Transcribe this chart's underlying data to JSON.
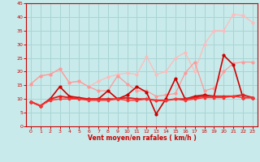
{
  "background_color": "#c8eaea",
  "grid_color": "#aad4d4",
  "xlabel": "Vent moyen/en rafales ( km/h )",
  "xlim": [
    -0.5,
    23.5
  ],
  "ylim": [
    0,
    45
  ],
  "yticks": [
    0,
    5,
    10,
    15,
    20,
    25,
    30,
    35,
    40,
    45
  ],
  "xticks": [
    0,
    1,
    2,
    3,
    4,
    5,
    6,
    7,
    8,
    9,
    10,
    11,
    12,
    13,
    14,
    15,
    16,
    17,
    18,
    19,
    20,
    21,
    22,
    23
  ],
  "series": [
    {
      "x": [
        0,
        1,
        2,
        3,
        4,
        5,
        6,
        7,
        8,
        9,
        10,
        11,
        12,
        13,
        14,
        15,
        16,
        17,
        18,
        19,
        20,
        21,
        22,
        23
      ],
      "y": [
        15.5,
        18.5,
        19.0,
        21.0,
        16.0,
        16.5,
        14.5,
        16.5,
        18.0,
        19.0,
        19.5,
        19.0,
        25.5,
        19.0,
        20.0,
        25.0,
        27.0,
        20.0,
        30.0,
        35.0,
        35.0,
        41.0,
        40.5,
        38.0
      ],
      "color": "#ffbbbb",
      "lw": 0.9,
      "marker": "o",
      "ms": 2.0
    },
    {
      "x": [
        0,
        1,
        2,
        3,
        4,
        5,
        6,
        7,
        8,
        9,
        10,
        11,
        12,
        13,
        14,
        15,
        16,
        17,
        18,
        19,
        20,
        21,
        22,
        23
      ],
      "y": [
        15.5,
        18.5,
        19.0,
        21.0,
        16.0,
        16.5,
        14.5,
        13.0,
        13.0,
        18.5,
        15.5,
        13.0,
        13.0,
        11.0,
        11.5,
        12.0,
        19.5,
        23.5,
        13.0,
        14.0,
        20.0,
        23.0,
        23.5,
        23.5
      ],
      "color": "#ff9999",
      "lw": 0.9,
      "marker": "o",
      "ms": 2.0
    },
    {
      "x": [
        0,
        1,
        2,
        3,
        4,
        5,
        6,
        7,
        8,
        9,
        10,
        11,
        12,
        13,
        14,
        15,
        16,
        17,
        18,
        19,
        20,
        21,
        22,
        23
      ],
      "y": [
        9.0,
        7.5,
        10.0,
        14.5,
        11.0,
        10.5,
        10.0,
        10.0,
        13.0,
        10.0,
        11.5,
        14.5,
        12.5,
        4.5,
        10.0,
        17.5,
        10.0,
        11.0,
        11.5,
        11.0,
        26.0,
        22.5,
        10.5,
        10.5
      ],
      "color": "#cc0000",
      "lw": 1.2,
      "marker": "o",
      "ms": 2.0
    },
    {
      "x": [
        0,
        1,
        2,
        3,
        4,
        5,
        6,
        7,
        8,
        9,
        10,
        11,
        12,
        13,
        14,
        15,
        16,
        17,
        18,
        19,
        20,
        21,
        22,
        23
      ],
      "y": [
        9.0,
        7.5,
        10.0,
        11.0,
        10.5,
        10.0,
        10.0,
        10.0,
        10.0,
        10.0,
        10.5,
        10.0,
        10.0,
        9.5,
        9.5,
        10.0,
        10.0,
        10.5,
        11.0,
        11.0,
        11.0,
        11.0,
        11.5,
        10.5
      ],
      "color": "#dd2222",
      "lw": 1.4,
      "marker": "o",
      "ms": 1.8
    },
    {
      "x": [
        0,
        1,
        2,
        3,
        4,
        5,
        6,
        7,
        8,
        9,
        10,
        11,
        12,
        13,
        14,
        15,
        16,
        17,
        18,
        19,
        20,
        21,
        22,
        23
      ],
      "y": [
        9.0,
        7.5,
        9.5,
        10.0,
        10.0,
        10.0,
        9.5,
        9.5,
        9.5,
        10.0,
        9.5,
        9.5,
        10.0,
        9.5,
        9.5,
        10.0,
        9.5,
        10.0,
        10.5,
        10.5,
        10.5,
        11.0,
        10.5,
        10.5
      ],
      "color": "#ff3333",
      "lw": 1.0,
      "marker": "o",
      "ms": 1.6
    }
  ]
}
